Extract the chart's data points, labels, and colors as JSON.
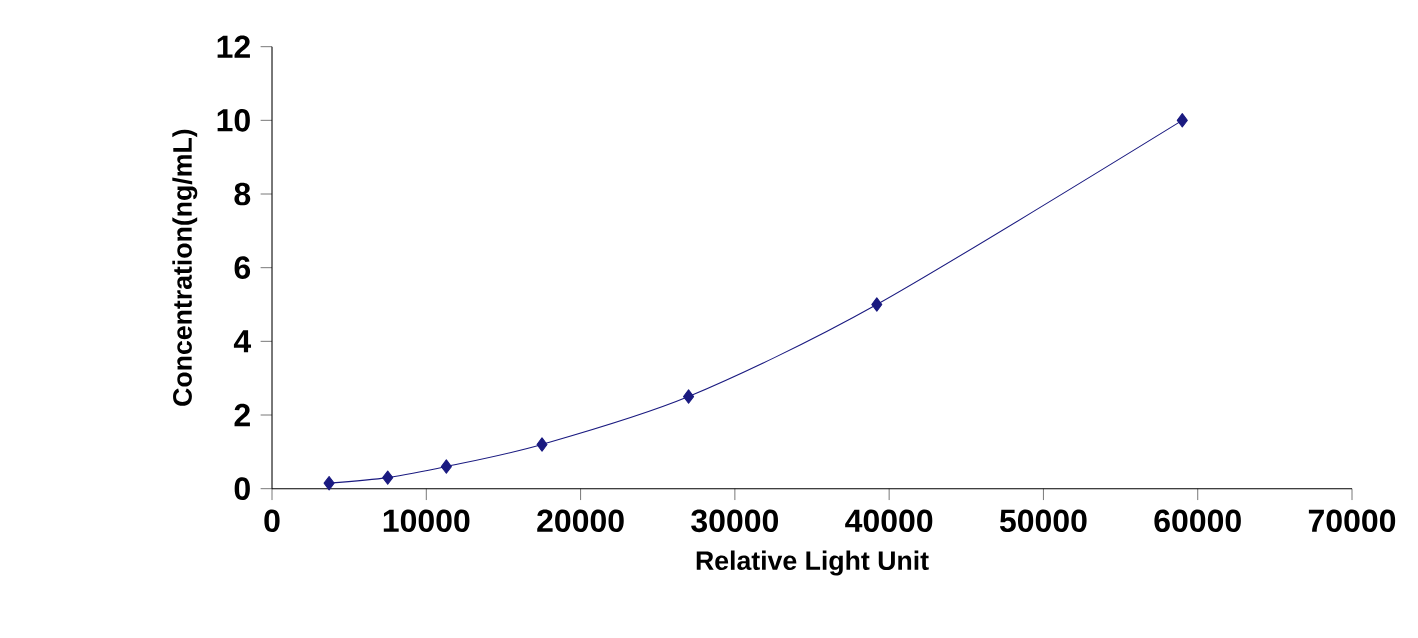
{
  "chart_data": {
    "type": "line",
    "xlabel": "Relative Light Unit",
    "ylabel": "Concentration(ng/mL)",
    "x": [
      3700,
      7500,
      11300,
      17500,
      27000,
      39200,
      59000
    ],
    "series": [
      {
        "color": "#1a1a80",
        "values": [
          0.15,
          0.3,
          0.6,
          1.2,
          2.5,
          5,
          10
        ]
      }
    ],
    "xlim": [
      0,
      70000
    ],
    "xticks": [
      0,
      10000,
      20000,
      30000,
      40000,
      50000,
      60000,
      70000
    ],
    "ylim": [
      0,
      12
    ],
    "yticks": [
      0,
      2,
      4,
      6,
      8,
      10,
      12
    ],
    "marker": "diamond",
    "line_style": "solid",
    "grid": false
  }
}
